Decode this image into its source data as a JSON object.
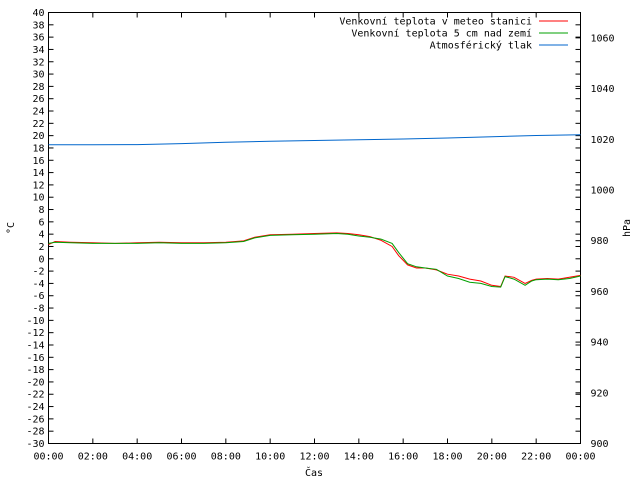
{
  "chart_data": {
    "type": "line",
    "xlabel": "Čas",
    "ylabel": "°C",
    "y2label": "hPa",
    "xlim": [
      0,
      24
    ],
    "xtick_labels": [
      "00:00",
      "02:00",
      "04:00",
      "06:00",
      "08:00",
      "10:00",
      "12:00",
      "14:00",
      "16:00",
      "18:00",
      "20:00",
      "22:00",
      "00:00"
    ],
    "ylim": [
      -30,
      40
    ],
    "y_ticks": [
      40,
      38,
      36,
      34,
      32,
      30,
      28,
      26,
      24,
      22,
      20,
      18,
      16,
      14,
      12,
      10,
      8,
      6,
      4,
      2,
      0,
      -2,
      -4,
      -6,
      -8,
      -10,
      -12,
      -14,
      -16,
      -18,
      -20,
      -22,
      -24,
      -26,
      -28,
      -30
    ],
    "y2lim": [
      900,
      1070
    ],
    "y2_ticks": [
      1060,
      1040,
      1020,
      1000,
      980,
      960,
      940,
      920,
      900
    ],
    "legend_position": "top-right",
    "series": [
      {
        "name": "Venkovní teplota v meteo stanici",
        "color": "#ff0000",
        "axis": "left",
        "points": [
          [
            0,
            2.3
          ],
          [
            0.3,
            2.8
          ],
          [
            1,
            2.7
          ],
          [
            2,
            2.6
          ],
          [
            3,
            2.5
          ],
          [
            4,
            2.6
          ],
          [
            5,
            2.7
          ],
          [
            6,
            2.6
          ],
          [
            7,
            2.6
          ],
          [
            8,
            2.7
          ],
          [
            8.8,
            2.9
          ],
          [
            9.3,
            3.5
          ],
          [
            10,
            3.9
          ],
          [
            11,
            4.0
          ],
          [
            12,
            4.1
          ],
          [
            13,
            4.2
          ],
          [
            13.5,
            4.1
          ],
          [
            14,
            3.9
          ],
          [
            14.5,
            3.6
          ],
          [
            15,
            3.0
          ],
          [
            15.5,
            2.0
          ],
          [
            15.8,
            0.5
          ],
          [
            16.2,
            -1.0
          ],
          [
            16.6,
            -1.5
          ],
          [
            17,
            -1.5
          ],
          [
            17.5,
            -1.8
          ],
          [
            18,
            -2.5
          ],
          [
            18.5,
            -2.8
          ],
          [
            19,
            -3.3
          ],
          [
            19.5,
            -3.6
          ],
          [
            20,
            -4.3
          ],
          [
            20.4,
            -4.5
          ],
          [
            20.6,
            -2.8
          ],
          [
            21,
            -3.0
          ],
          [
            21.5,
            -4.0
          ],
          [
            21.8,
            -3.5
          ],
          [
            22,
            -3.3
          ],
          [
            22.5,
            -3.2
          ],
          [
            23,
            -3.3
          ],
          [
            23.5,
            -3.0
          ],
          [
            24,
            -2.7
          ]
        ]
      },
      {
        "name": "Venkovní teplota 5 cm nad zemí",
        "color": "#00a000",
        "axis": "left",
        "points": [
          [
            0,
            2.5
          ],
          [
            0.3,
            2.7
          ],
          [
            1,
            2.6
          ],
          [
            2,
            2.5
          ],
          [
            3,
            2.5
          ],
          [
            4,
            2.5
          ],
          [
            5,
            2.6
          ],
          [
            6,
            2.5
          ],
          [
            7,
            2.5
          ],
          [
            8,
            2.6
          ],
          [
            8.8,
            2.8
          ],
          [
            9.3,
            3.4
          ],
          [
            10,
            3.8
          ],
          [
            11,
            3.9
          ],
          [
            12,
            4.0
          ],
          [
            13,
            4.1
          ],
          [
            13.5,
            4.0
          ],
          [
            14,
            3.7
          ],
          [
            14.5,
            3.5
          ],
          [
            15,
            3.2
          ],
          [
            15.5,
            2.5
          ],
          [
            15.8,
            1.0
          ],
          [
            16.2,
            -0.8
          ],
          [
            16.6,
            -1.3
          ],
          [
            17,
            -1.5
          ],
          [
            17.5,
            -1.7
          ],
          [
            18,
            -2.8
          ],
          [
            18.5,
            -3.2
          ],
          [
            19,
            -3.8
          ],
          [
            19.5,
            -4.0
          ],
          [
            20,
            -4.5
          ],
          [
            20.4,
            -4.6
          ],
          [
            20.6,
            -2.9
          ],
          [
            21,
            -3.3
          ],
          [
            21.5,
            -4.3
          ],
          [
            21.8,
            -3.6
          ],
          [
            22,
            -3.4
          ],
          [
            22.5,
            -3.3
          ],
          [
            23,
            -3.4
          ],
          [
            23.5,
            -3.2
          ],
          [
            24,
            -2.8
          ]
        ]
      },
      {
        "name": "Atmosférický tlak",
        "color": "#0066cc",
        "axis": "right",
        "points": [
          [
            0,
            1017.8
          ],
          [
            2,
            1017.8
          ],
          [
            4,
            1017.9
          ],
          [
            6,
            1018.3
          ],
          [
            8,
            1018.8
          ],
          [
            10,
            1019.2
          ],
          [
            12,
            1019.5
          ],
          [
            14,
            1019.8
          ],
          [
            16,
            1020.1
          ],
          [
            18,
            1020.5
          ],
          [
            20,
            1021
          ],
          [
            22,
            1021.5
          ],
          [
            24,
            1021.8
          ]
        ]
      }
    ]
  }
}
